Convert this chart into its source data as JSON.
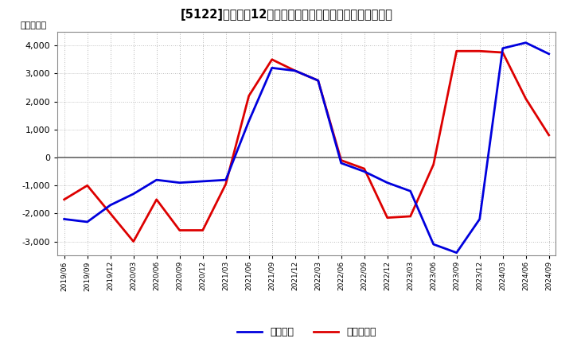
{
  "title": "[5122]　利益だ12か月移動合計の対前年同期増減額の推移",
  "ylabel": "（百万円）",
  "background_color": "#ffffff",
  "plot_bg_color": "#f0f0f0",
  "grid_color": "#aaaaaa",
  "zero_line_color": "#666666",
  "ylim": [
    -3500,
    4500
  ],
  "yticks": [
    -3000,
    -2000,
    -1000,
    0,
    1000,
    2000,
    3000,
    4000
  ],
  "x_labels": [
    "2019/06",
    "2019/09",
    "2019/12",
    "2020/03",
    "2020/06",
    "2020/09",
    "2020/12",
    "2021/03",
    "2021/06",
    "2021/09",
    "2021/12",
    "2022/03",
    "2022/06",
    "2022/09",
    "2022/12",
    "2023/03",
    "2023/06",
    "2023/09",
    "2023/12",
    "2024/03",
    "2024/06",
    "2024/09"
  ],
  "blue_data": {
    "label": "経常利益",
    "color": "#0000dd",
    "values": [
      -2200,
      -2300,
      -1700,
      -1300,
      -800,
      -900,
      -850,
      -800,
      1300,
      3200,
      3100,
      2750,
      -200,
      -500,
      -900,
      -1200,
      -3100,
      -3400,
      -2200,
      3900,
      4100,
      3700
    ]
  },
  "red_data": {
    "label": "当期純利益",
    "color": "#dd0000",
    "values": [
      -1500,
      -1000,
      -2000,
      -3000,
      -1500,
      -2600,
      -2600,
      -950,
      2200,
      3500,
      3100,
      2750,
      -100,
      -400,
      -2150,
      -2100,
      -250,
      3800,
      3800,
      3750,
      2100,
      800
    ]
  }
}
